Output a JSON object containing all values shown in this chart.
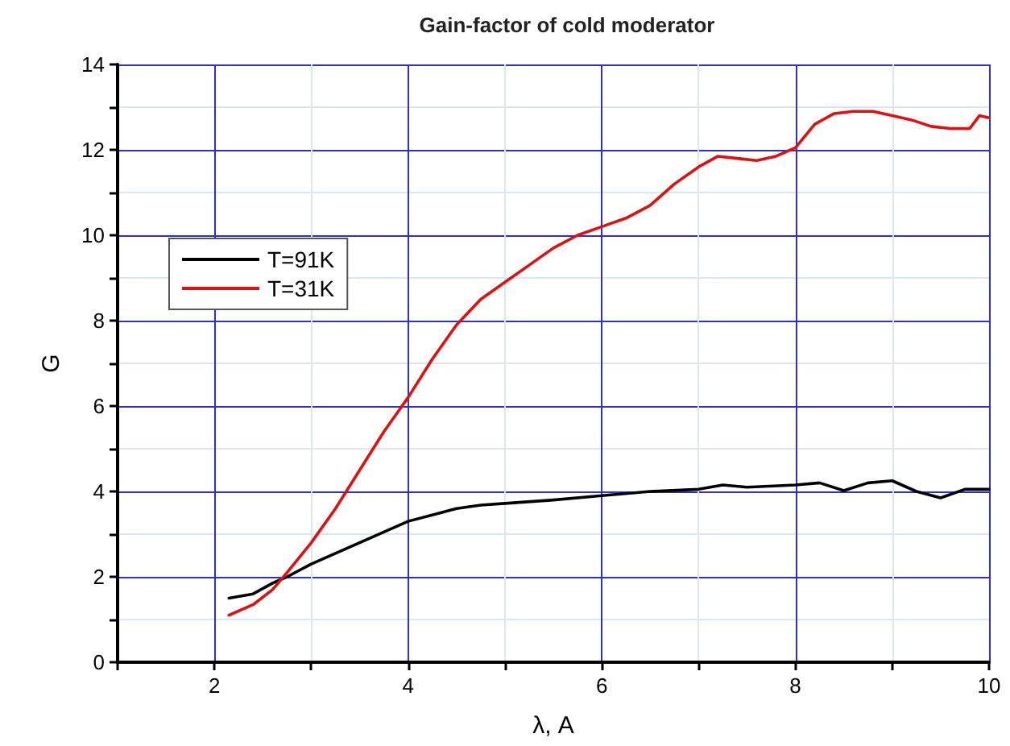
{
  "chart_data": {
    "type": "line",
    "title": "Gain-factor of cold moderator",
    "xlabel": "λ, A",
    "ylabel": "G",
    "xlim": [
      1,
      10
    ],
    "xticks": [
      {
        "value": 1,
        "label": null
      },
      2,
      {
        "value": 3,
        "label": null
      },
      4,
      {
        "value": 5,
        "label": null
      },
      6,
      {
        "value": 7,
        "label": null
      },
      8,
      {
        "value": 9,
        "label": null
      },
      10
    ],
    "ylim": [
      0,
      14
    ],
    "yticks": [
      0,
      {
        "value": 1,
        "label": null
      },
      2,
      {
        "value": 3,
        "label": null
      },
      4,
      {
        "value": 5,
        "label": null
      },
      6,
      {
        "value": 7,
        "label": null
      },
      8,
      {
        "value": 9,
        "label": null
      },
      10,
      {
        "value": 11,
        "label": null
      },
      12,
      {
        "value": 13,
        "label": null
      },
      14
    ],
    "grid": true,
    "legend": "left",
    "marker": "none",
    "line_style": "solid",
    "series": [
      {
        "name": "T=91K",
        "color": "#000000",
        "x": [
          2.15,
          2.4,
          2.6,
          2.75,
          3.0,
          3.25,
          3.5,
          3.75,
          4.0,
          4.25,
          4.5,
          4.75,
          5.0,
          5.5,
          6.0,
          6.5,
          7.0,
          7.25,
          7.5,
          8.0,
          8.25,
          8.5,
          8.75,
          9.0,
          9.25,
          9.5,
          9.75,
          10.0
        ],
        "values": [
          1.5,
          1.6,
          1.85,
          2.0,
          2.3,
          2.55,
          2.8,
          3.05,
          3.3,
          3.45,
          3.6,
          3.68,
          3.72,
          3.8,
          3.9,
          4.0,
          4.05,
          4.15,
          4.1,
          4.15,
          4.2,
          4.02,
          4.2,
          4.25,
          4.0,
          3.85,
          4.05,
          4.05
        ]
      },
      {
        "name": "T=31K",
        "color": "#e01010",
        "x": [
          2.15,
          2.4,
          2.6,
          2.75,
          3.0,
          3.25,
          3.5,
          3.75,
          4.0,
          4.25,
          4.5,
          4.75,
          5.0,
          5.25,
          5.5,
          5.75,
          6.0,
          6.25,
          6.5,
          6.75,
          7.0,
          7.2,
          7.4,
          7.6,
          7.8,
          8.0,
          8.2,
          8.4,
          8.6,
          8.8,
          9.0,
          9.2,
          9.4,
          9.6,
          9.8,
          9.9,
          10.0
        ],
        "values": [
          1.1,
          1.35,
          1.7,
          2.1,
          2.8,
          3.6,
          4.5,
          5.4,
          6.2,
          7.1,
          7.9,
          8.5,
          8.9,
          9.3,
          9.7,
          10.0,
          10.2,
          10.4,
          10.7,
          11.2,
          11.6,
          11.85,
          11.8,
          11.75,
          11.85,
          12.05,
          12.6,
          12.85,
          12.9,
          12.9,
          12.8,
          12.7,
          12.55,
          12.5,
          12.5,
          12.8,
          12.75
        ]
      }
    ]
  }
}
